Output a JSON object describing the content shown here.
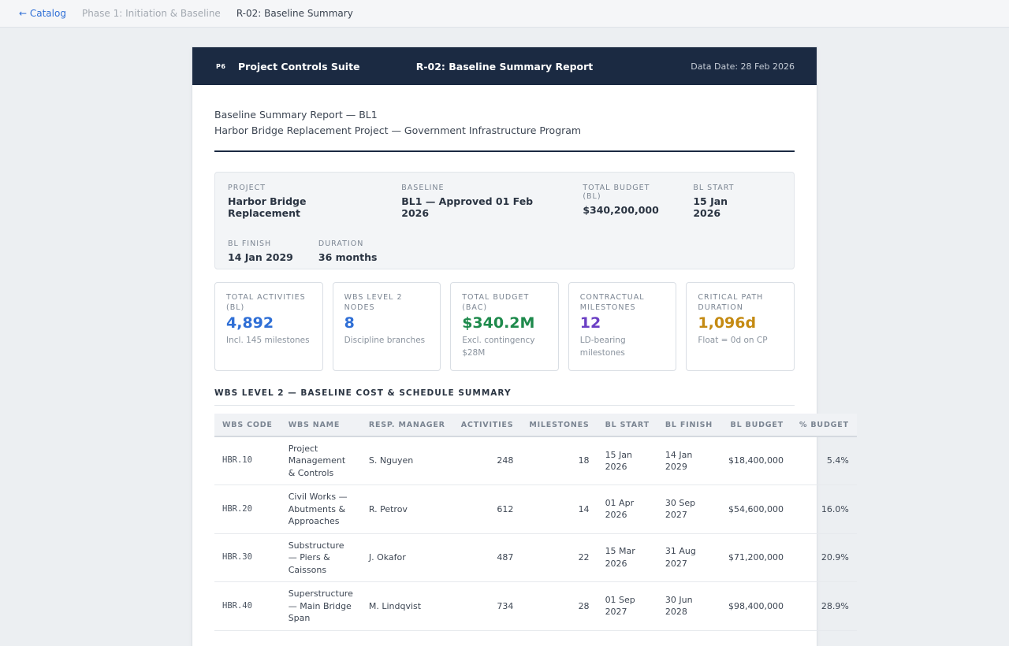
{
  "breadcrumb": {
    "back": "← Catalog",
    "phase": "Phase 1: Initiation & Baseline",
    "current": "R-02: Baseline Summary"
  },
  "header": {
    "logo": "P6",
    "suite": "Project Controls Suite",
    "title": "R-02: Baseline Summary Report",
    "data_date": "Data Date: 28 Feb 2026"
  },
  "doc": {
    "line1": "Baseline Summary Report — BL1",
    "line2": "Harbor Bridge Replacement Project — Government Infrastructure Program"
  },
  "meta": {
    "project_label": "PROJECT",
    "project": "Harbor Bridge Replacement",
    "baseline_label": "BASELINE",
    "baseline": "BL1 — Approved 01 Feb 2026",
    "budget_label": "TOTAL BUDGET (BL)",
    "budget": "$340,200,000",
    "start_label": "BL START",
    "start": "15 Jan 2026",
    "finish_label": "BL FINISH",
    "finish": "14 Jan 2029",
    "duration_label": "DURATION",
    "duration": "36 months"
  },
  "kpis": [
    {
      "label": "TOTAL ACTIVITIES (BL)",
      "value": "4,892",
      "sub": "Incl. 145 milestones",
      "color": "#2f6fd6"
    },
    {
      "label": "WBS LEVEL 2 NODES",
      "value": "8",
      "sub": "Discipline branches",
      "color": "#2f6fd6"
    },
    {
      "label": "TOTAL BUDGET (BAC)",
      "value": "$340.2M",
      "sub": "Excl. contingency $28M",
      "color": "#1e8a4c"
    },
    {
      "label": "CONTRACTUAL MILESTONES",
      "value": "12",
      "sub": "LD-bearing milestones",
      "color": "#6b3fc4"
    },
    {
      "label": "CRITICAL PATH DURATION",
      "value": "1,096d",
      "sub": "Float = 0d on CP",
      "color": "#c48a12"
    }
  ],
  "section": "WBS LEVEL 2 — BASELINE COST & SCHEDULE SUMMARY",
  "table": {
    "headers": [
      "WBS CODE",
      "WBS NAME",
      "RESP. MANAGER",
      "ACTIVITIES",
      "MILESTONES",
      "BL START",
      "BL FINISH",
      "BL BUDGET",
      "% BUDGET"
    ],
    "rows": [
      [
        "HBR.10",
        "Project Management & Controls",
        "S. Nguyen",
        "248",
        "18",
        "15 Jan 2026",
        "14 Jan 2029",
        "$18,400,000",
        "5.4%"
      ],
      [
        "HBR.20",
        "Civil Works — Abutments & Approaches",
        "R. Petrov",
        "612",
        "14",
        "01 Apr 2026",
        "30 Sep 2027",
        "$54,600,000",
        "16.0%"
      ],
      [
        "HBR.30",
        "Substructure — Piers & Caissons",
        "J. Okafor",
        "487",
        "22",
        "15 Mar 2026",
        "31 Aug 2027",
        "$71,200,000",
        "20.9%"
      ],
      [
        "HBR.40",
        "Superstructure — Main Bridge Span",
        "M. Lindqvist",
        "734",
        "28",
        "01 Sep 2027",
        "30 Jun 2028",
        "$98,400,000",
        "28.9%"
      ]
    ]
  }
}
